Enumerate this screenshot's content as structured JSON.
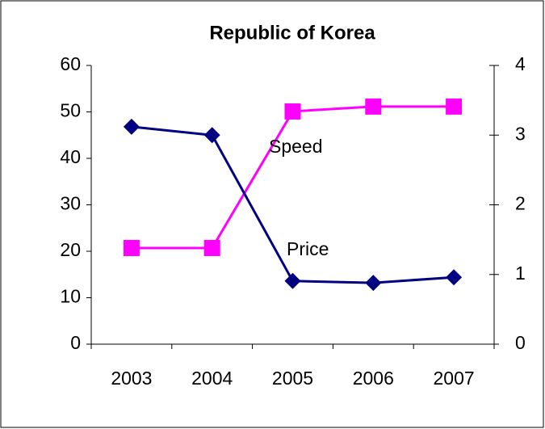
{
  "chart_data": {
    "type": "line",
    "title": "Republic of Korea",
    "categories": [
      "2003",
      "2004",
      "2005",
      "2006",
      "2007"
    ],
    "series": [
      {
        "name": "Speed",
        "color": "#ff00ff",
        "axis": "y2",
        "values": [
          1.38,
          1.38,
          3.34,
          3.41,
          3.41
        ]
      },
      {
        "name": "Price",
        "color": "#000080",
        "values": [
          46.8,
          45,
          13.6,
          13.2,
          14.4
        ]
      }
    ],
    "ylim": [
      0,
      60
    ],
    "yticks": [
      0,
      10,
      20,
      30,
      40,
      50,
      60
    ],
    "y2lim": [
      0,
      4
    ],
    "y2ticks": [
      0,
      1,
      2,
      3,
      4
    ]
  }
}
